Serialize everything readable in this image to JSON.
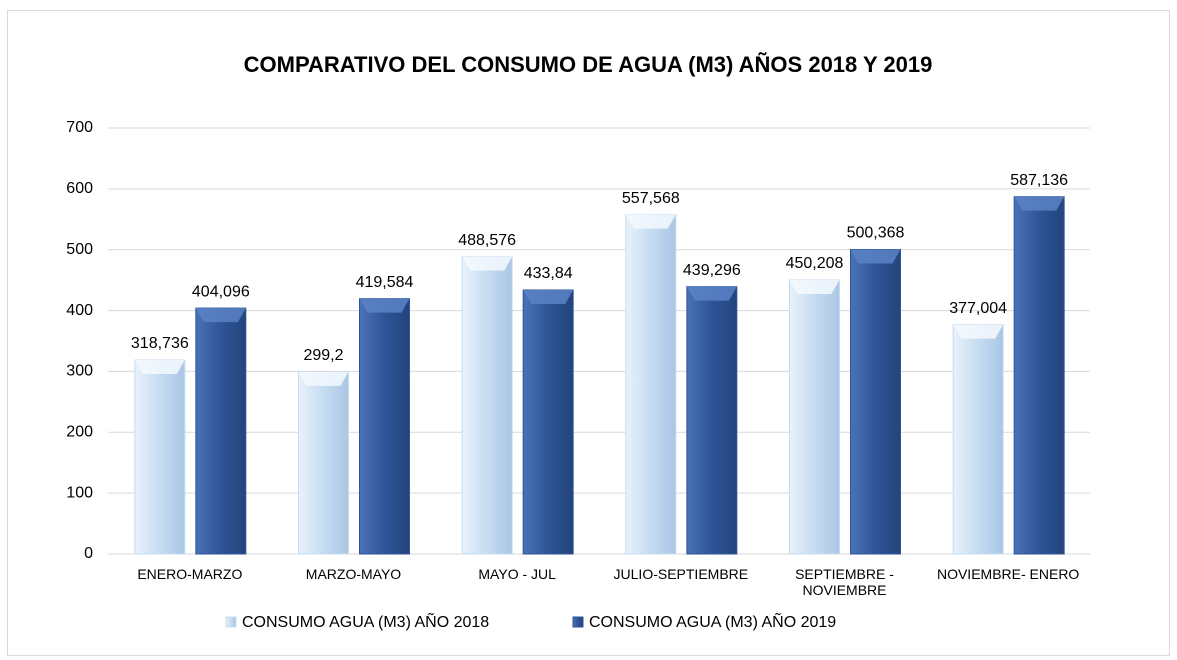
{
  "chart_data": {
    "type": "bar",
    "title": "COMPARATIVO DEL CONSUMO DE AGUA (M3) AÑOS 2018 Y 2019",
    "categories": [
      "ENERO-MARZO",
      "MARZO-MAYO",
      "MAYO - JUL",
      "JULIO-SEPTIEMBRE",
      "SEPTIEMBRE - NOVIEMBRE",
      "NOVIEMBRE- ENERO"
    ],
    "series": [
      {
        "name": "CONSUMO AGUA  (M3) AÑO 2018",
        "color": "#c6dcf1",
        "values": [
          318.736,
          299.2,
          488.576,
          557.568,
          450.208,
          377.004
        ],
        "value_labels": [
          "318,736",
          "299,2",
          "488,576",
          "557,568",
          "450,208",
          "377,004"
        ]
      },
      {
        "name": "CONSUMO AGUA  (M3) AÑO 2019",
        "color": "#2f5597",
        "values": [
          404.096,
          419.584,
          433.84,
          439.296,
          500.368,
          587.136
        ],
        "value_labels": [
          "404,096",
          "419,584",
          "433,84",
          "439,296",
          "500,368",
          "587,136"
        ]
      }
    ],
    "ylim": [
      0,
      700
    ],
    "yticks": [
      0,
      100,
      200,
      300,
      400,
      500,
      600,
      700
    ],
    "grid": true,
    "legend": "bottom"
  }
}
